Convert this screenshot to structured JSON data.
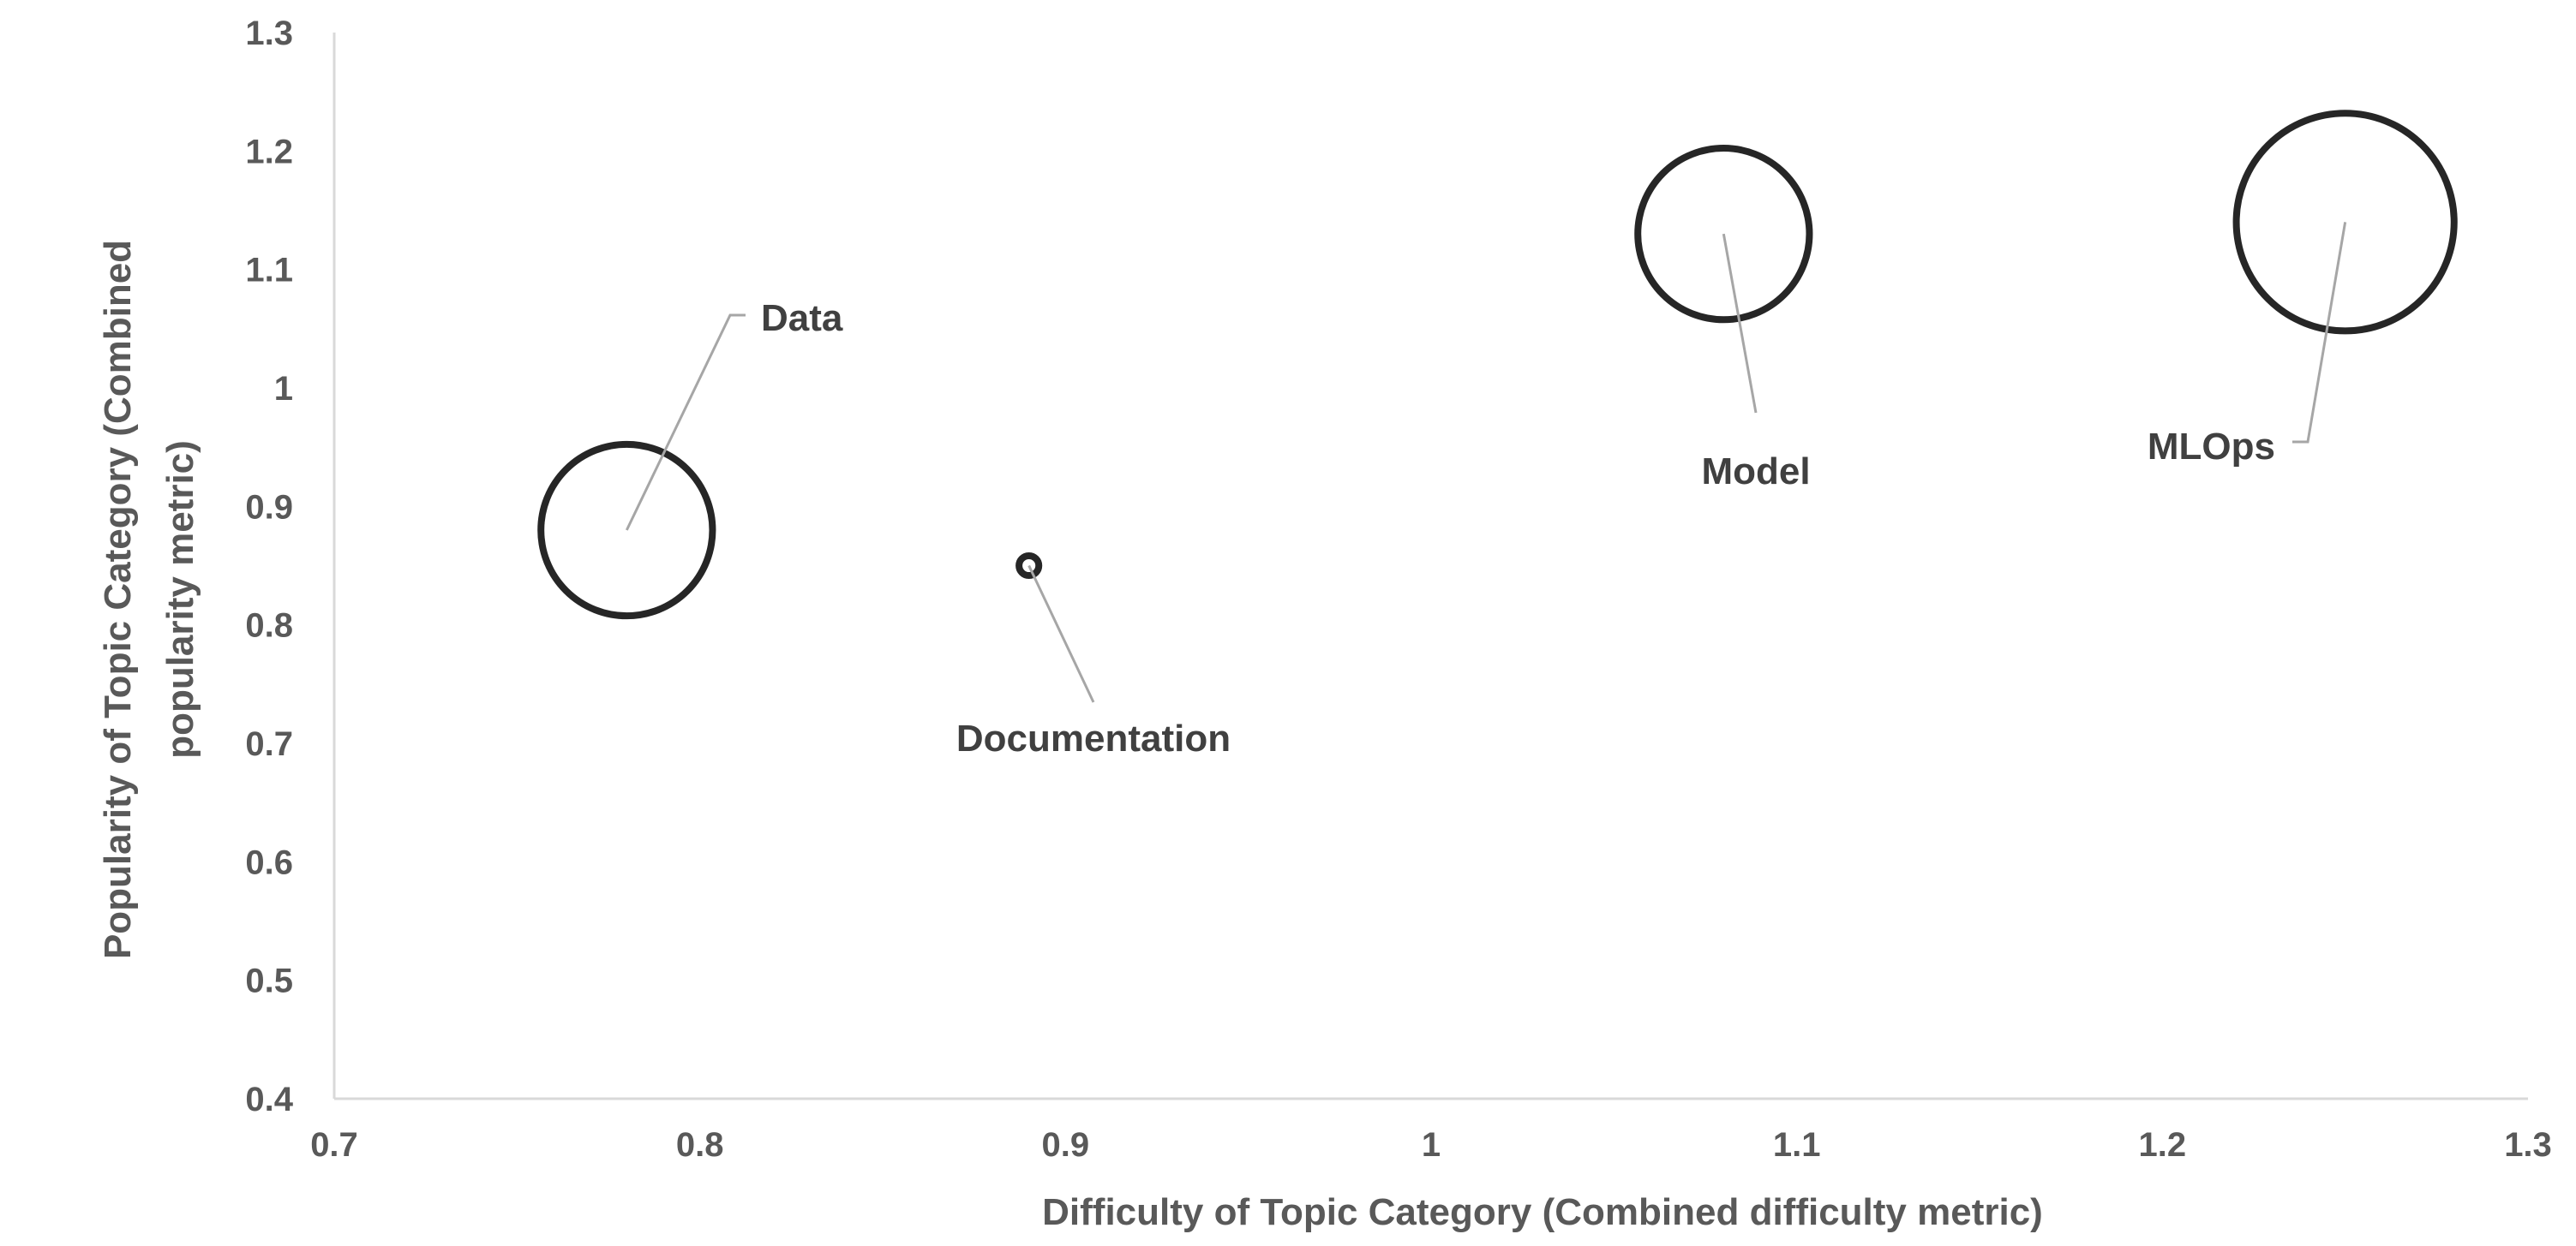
{
  "chart_data": {
    "type": "scatter",
    "subtype": "bubble",
    "title": "",
    "xlabel": "Difficulty of Topic Category (Combined difficulty metric)",
    "ylabel_lines": [
      "Popularity  of Topic Category (Combined",
      "popularity metric)"
    ],
    "xlim": [
      0.7,
      1.3
    ],
    "ylim": [
      0.4,
      1.3
    ],
    "x_ticks": [
      "0.7",
      "0.8",
      "0.9",
      "1",
      "1.1",
      "1.2",
      "1.3"
    ],
    "y_ticks": [
      "0.4",
      "0.5",
      "0.6",
      "0.7",
      "0.8",
      "0.9",
      "1",
      "1.1",
      "1.2",
      "1.3"
    ],
    "grid": false,
    "legend": "none",
    "points": [
      {
        "label": "Data",
        "x": 0.78,
        "y": 0.88,
        "size": 0.18
      },
      {
        "label": "Documentation",
        "x": 0.89,
        "y": 0.85,
        "size": 0.0024
      },
      {
        "label": "Model",
        "x": 1.08,
        "y": 1.13,
        "size": 0.18
      },
      {
        "label": "MLOps",
        "x": 1.25,
        "y": 1.14,
        "size": 0.29
      }
    ],
    "colors": {
      "bubble_outline": "#262626",
      "leader_line": "#a6a6a6",
      "axis": "#d9d9d9",
      "text": "#595959"
    }
  }
}
